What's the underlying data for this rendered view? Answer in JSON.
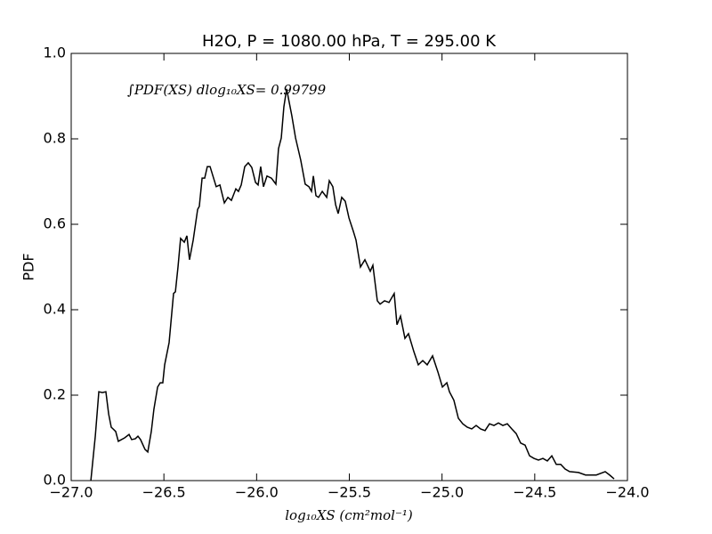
{
  "chart_data": {
    "type": "line",
    "title": "H2O, P = 1080.00 hPa, T = 295.00 K",
    "xlabel": "log₁₀XS (cm²mol⁻¹)",
    "ylabel": "PDF",
    "annotation": "∫PDF(XS) dlog₁₀XS= 0.99799",
    "color": "#000000",
    "xlim": [
      -27,
      -24
    ],
    "ylim": [
      0,
      1
    ],
    "xticks": [
      {
        "value": -27,
        "label": "−27.0"
      },
      {
        "value": -26.5,
        "label": "−26.5"
      },
      {
        "value": -26,
        "label": "−26.0"
      },
      {
        "value": -25.5,
        "label": "−25.5"
      },
      {
        "value": -25,
        "label": "−25.0"
      },
      {
        "value": -24.5,
        "label": "−24.5"
      },
      {
        "value": -24,
        "label": "−24.0"
      }
    ],
    "yticks": [
      {
        "value": 0,
        "label": "0.0"
      },
      0.2,
      0.4,
      0.6,
      0.8,
      {
        "value": 1,
        "label": "1.0"
      }
    ],
    "x": [
      -26.894,
      -26.87,
      -26.851,
      -26.832,
      -26.813,
      -26.798,
      -26.784,
      -26.76,
      -26.746,
      -26.712,
      -26.688,
      -26.674,
      -26.654,
      -26.64,
      -26.626,
      -26.602,
      -26.587,
      -26.568,
      -26.554,
      -26.534,
      -26.52,
      -26.506,
      -26.496,
      -26.472,
      -26.448,
      -26.438,
      -26.424,
      -26.41,
      -26.39,
      -26.376,
      -26.362,
      -26.342,
      -26.318,
      -26.309,
      -26.294,
      -26.28,
      -26.266,
      -26.251,
      -26.232,
      -26.218,
      -26.198,
      -26.174,
      -26.155,
      -26.136,
      -26.112,
      -26.098,
      -26.083,
      -26.064,
      -26.045,
      -26.026,
      -26.006,
      -25.992,
      -25.978,
      -25.963,
      -25.944,
      -25.92,
      -25.896,
      -25.882,
      -25.867,
      -25.853,
      -25.838,
      -25.824,
      -25.81,
      -25.79,
      -25.762,
      -25.738,
      -25.718,
      -25.704,
      -25.694,
      -25.68,
      -25.666,
      -25.646,
      -25.622,
      -25.608,
      -25.589,
      -25.574,
      -25.56,
      -25.541,
      -25.522,
      -25.502,
      -25.478,
      -25.464,
      -25.44,
      -25.416,
      -25.387,
      -25.373,
      -25.349,
      -25.334,
      -25.31,
      -25.286,
      -25.258,
      -25.243,
      -25.224,
      -25.2,
      -25.181,
      -25.152,
      -25.128,
      -25.104,
      -25.08,
      -25.051,
      -25.022,
      -24.998,
      -24.974,
      -24.96,
      -24.936,
      -24.912,
      -24.888,
      -24.864,
      -24.84,
      -24.816,
      -24.792,
      -24.768,
      -24.744,
      -24.72,
      -24.696,
      -24.672,
      -24.648,
      -24.624,
      -24.6,
      -24.576,
      -24.552,
      -24.528,
      -24.504,
      -24.48,
      -24.456,
      -24.432,
      -24.408,
      -24.384,
      -24.36,
      -24.336,
      -24.312,
      -24.264,
      -24.226,
      -24.168,
      -24.12,
      -24.096,
      -24.072
    ],
    "values": [
      0,
      0.104,
      0.208,
      0.206,
      0.208,
      0.156,
      0.125,
      0.115,
      0.092,
      0.1,
      0.108,
      0.096,
      0.098,
      0.104,
      0.096,
      0.073,
      0.067,
      0.115,
      0.167,
      0.219,
      0.229,
      0.229,
      0.271,
      0.323,
      0.438,
      0.442,
      0.5,
      0.567,
      0.558,
      0.573,
      0.517,
      0.563,
      0.635,
      0.642,
      0.708,
      0.708,
      0.735,
      0.735,
      0.708,
      0.688,
      0.692,
      0.65,
      0.663,
      0.656,
      0.683,
      0.677,
      0.692,
      0.735,
      0.744,
      0.733,
      0.698,
      0.692,
      0.735,
      0.688,
      0.713,
      0.708,
      0.694,
      0.777,
      0.802,
      0.875,
      0.917,
      0.885,
      0.854,
      0.802,
      0.75,
      0.694,
      0.688,
      0.677,
      0.713,
      0.667,
      0.663,
      0.677,
      0.663,
      0.702,
      0.688,
      0.646,
      0.625,
      0.663,
      0.654,
      0.615,
      0.583,
      0.563,
      0.5,
      0.517,
      0.49,
      0.504,
      0.421,
      0.413,
      0.421,
      0.417,
      0.438,
      0.365,
      0.385,
      0.333,
      0.344,
      0.302,
      0.271,
      0.281,
      0.271,
      0.292,
      0.254,
      0.219,
      0.229,
      0.208,
      0.188,
      0.146,
      0.133,
      0.125,
      0.121,
      0.129,
      0.121,
      0.117,
      0.133,
      0.129,
      0.135,
      0.129,
      0.133,
      0.121,
      0.11,
      0.088,
      0.083,
      0.058,
      0.052,
      0.048,
      0.052,
      0.046,
      0.058,
      0.038,
      0.038,
      0.027,
      0.021,
      0.019,
      0.013,
      0.013,
      0.021,
      0.013,
      0.004
    ]
  }
}
